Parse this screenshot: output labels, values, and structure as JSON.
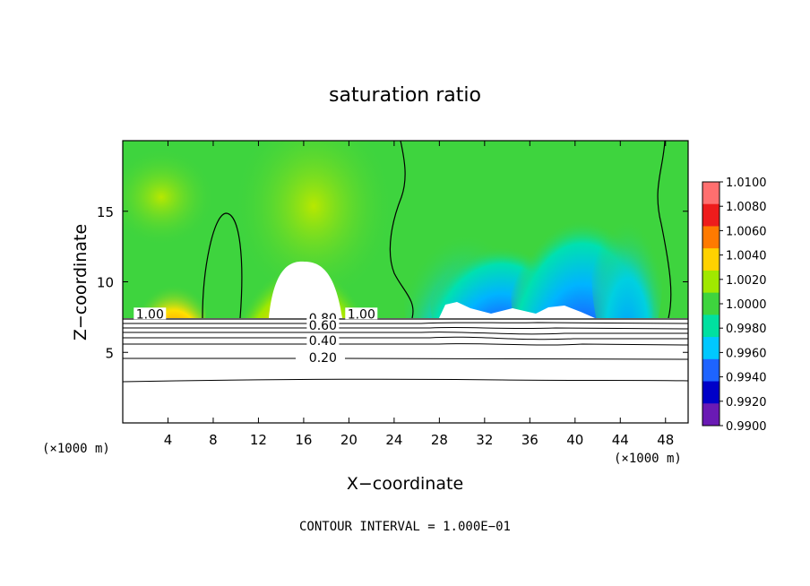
{
  "chart_data": {
    "type": "heatmap",
    "title": "saturation ratio",
    "xlabel": "X−coordinate",
    "ylabel": "Z−coordinate",
    "x_unit_left": "(×1000 m)",
    "x_unit_right": "(×1000 m)",
    "xlim": [
      0,
      50
    ],
    "ylim": [
      0,
      20
    ],
    "x_ticks": [
      4,
      8,
      12,
      16,
      20,
      24,
      28,
      32,
      36,
      40,
      44,
      48
    ],
    "y_ticks": [
      5,
      10,
      15
    ],
    "colorbar": {
      "min": 0.99,
      "max": 1.01,
      "labels": [
        "1.0100",
        "1.0080",
        "1.0060",
        "1.0040",
        "1.0020",
        "1.0000",
        "0.9980",
        "0.9960",
        "0.9940",
        "0.9920",
        "0.9900"
      ],
      "colors": [
        "#ff6f6f",
        "#ee1c1c",
        "#ff7a00",
        "#ffd200",
        "#a0e800",
        "#3ed43e",
        "#00e0a0",
        "#00c8ff",
        "#1e64ff",
        "#0000c8",
        "#6a1ab4"
      ]
    },
    "contour_labels": [
      {
        "text": "1.00",
        "x": 2.4,
        "z": 7.6
      },
      {
        "text": "1.00",
        "x": 21.1,
        "z": 7.6
      },
      {
        "text": "0.80",
        "x": 17.7,
        "z": 7.3
      },
      {
        "text": "0.60",
        "x": 17.7,
        "z": 6.8
      },
      {
        "text": "0.40",
        "x": 17.7,
        "z": 5.7
      },
      {
        "text": "0.20",
        "x": 17.7,
        "z": 4.5
      }
    ],
    "contour_levels_below": [
      0.2,
      0.4,
      0.6,
      0.8,
      1.0
    ],
    "footer": "CONTOUR INTERVAL = 1.000E−01"
  }
}
